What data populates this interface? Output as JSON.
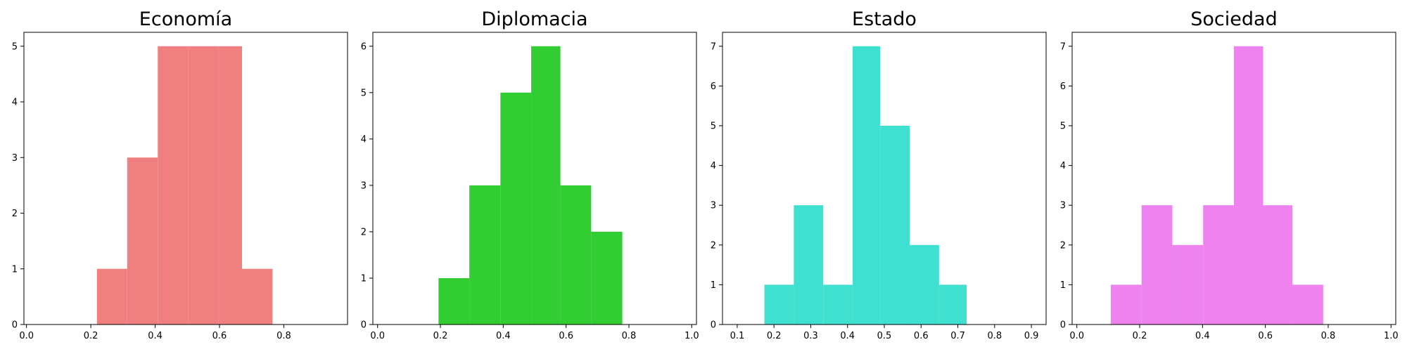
{
  "chart_data": [
    {
      "type": "bar",
      "title": "Economía",
      "color": "#f08080",
      "xlim": [
        -0.008,
        0.998
      ],
      "ylim": [
        0,
        5.25
      ],
      "xticks": [
        0.0,
        0.2,
        0.4,
        0.6,
        0.8
      ],
      "xtick_labels": [
        "0.0",
        "0.2",
        "0.4",
        "0.6",
        "0.8"
      ],
      "yticks": [
        0,
        1,
        2,
        3,
        4,
        5
      ],
      "ytick_labels": [
        "0",
        "1",
        "2",
        "3",
        "4",
        "5"
      ],
      "bins": [
        {
          "x0": 0.219,
          "x1": 0.313,
          "count": 1
        },
        {
          "x0": 0.313,
          "x1": 0.408,
          "count": 3
        },
        {
          "x0": 0.408,
          "x1": 0.502,
          "count": 5
        },
        {
          "x0": 0.502,
          "x1": 0.596,
          "count": 5
        },
        {
          "x0": 0.596,
          "x1": 0.67,
          "count": 5
        },
        {
          "x0": 0.67,
          "x1": 0.765,
          "count": 1
        }
      ]
    },
    {
      "type": "bar",
      "title": "Diplomacia",
      "color": "#32cd32",
      "xlim": [
        -0.015,
        1.015
      ],
      "ylim": [
        0,
        6.3
      ],
      "xticks": [
        0.0,
        0.2,
        0.4,
        0.6,
        0.8,
        1.0
      ],
      "xtick_labels": [
        "0.0",
        "0.2",
        "0.4",
        "0.6",
        "0.8",
        "1.0"
      ],
      "yticks": [
        0,
        1,
        2,
        3,
        4,
        5,
        6
      ],
      "ytick_labels": [
        "0",
        "1",
        "2",
        "3",
        "4",
        "5",
        "6"
      ],
      "bins": [
        {
          "x0": 0.194,
          "x1": 0.292,
          "count": 1
        },
        {
          "x0": 0.292,
          "x1": 0.391,
          "count": 3
        },
        {
          "x0": 0.391,
          "x1": 0.489,
          "count": 5
        },
        {
          "x0": 0.489,
          "x1": 0.582,
          "count": 6
        },
        {
          "x0": 0.582,
          "x1": 0.68,
          "count": 3
        },
        {
          "x0": 0.68,
          "x1": 0.779,
          "count": 2
        }
      ]
    },
    {
      "type": "bar",
      "title": "Estado",
      "color": "#40e0d0",
      "xlim": [
        0.06,
        0.94
      ],
      "ylim": [
        0,
        7.35
      ],
      "xticks": [
        0.1,
        0.2,
        0.3,
        0.4,
        0.5,
        0.6,
        0.7,
        0.8,
        0.9
      ],
      "xtick_labels": [
        "0.1",
        "0.2",
        "0.3",
        "0.4",
        "0.5",
        "0.6",
        "0.7",
        "0.8",
        "0.9"
      ],
      "yticks": [
        0,
        1,
        2,
        3,
        4,
        5,
        6,
        7
      ],
      "ytick_labels": [
        "0",
        "1",
        "2",
        "3",
        "4",
        "5",
        "6",
        "7"
      ],
      "bins": [
        {
          "x0": 0.174,
          "x1": 0.254,
          "count": 1
        },
        {
          "x0": 0.254,
          "x1": 0.334,
          "count": 3
        },
        {
          "x0": 0.334,
          "x1": 0.414,
          "count": 1
        },
        {
          "x0": 0.414,
          "x1": 0.489,
          "count": 7
        },
        {
          "x0": 0.489,
          "x1": 0.569,
          "count": 5
        },
        {
          "x0": 0.569,
          "x1": 0.649,
          "count": 2
        },
        {
          "x0": 0.649,
          "x1": 0.724,
          "count": 1
        }
      ]
    },
    {
      "type": "bar",
      "title": "Sociedad",
      "color": "#ee82ee",
      "xlim": [
        -0.015,
        1.015
      ],
      "ylim": [
        0,
        7.35
      ],
      "xticks": [
        0.0,
        0.2,
        0.4,
        0.6,
        0.8,
        1.0
      ],
      "xtick_labels": [
        "0.0",
        "0.2",
        "0.4",
        "0.6",
        "0.8",
        "1.0"
      ],
      "yticks": [
        0,
        1,
        2,
        3,
        4,
        5,
        6,
        7
      ],
      "ytick_labels": [
        "0",
        "1",
        "2",
        "3",
        "4",
        "5",
        "6",
        "7"
      ],
      "bins": [
        {
          "x0": 0.108,
          "x1": 0.206,
          "count": 1
        },
        {
          "x0": 0.206,
          "x1": 0.304,
          "count": 3
        },
        {
          "x0": 0.304,
          "x1": 0.402,
          "count": 2
        },
        {
          "x0": 0.402,
          "x1": 0.5,
          "count": 3
        },
        {
          "x0": 0.5,
          "x1": 0.593,
          "count": 7
        },
        {
          "x0": 0.593,
          "x1": 0.686,
          "count": 3
        },
        {
          "x0": 0.686,
          "x1": 0.784,
          "count": 1
        }
      ]
    }
  ]
}
